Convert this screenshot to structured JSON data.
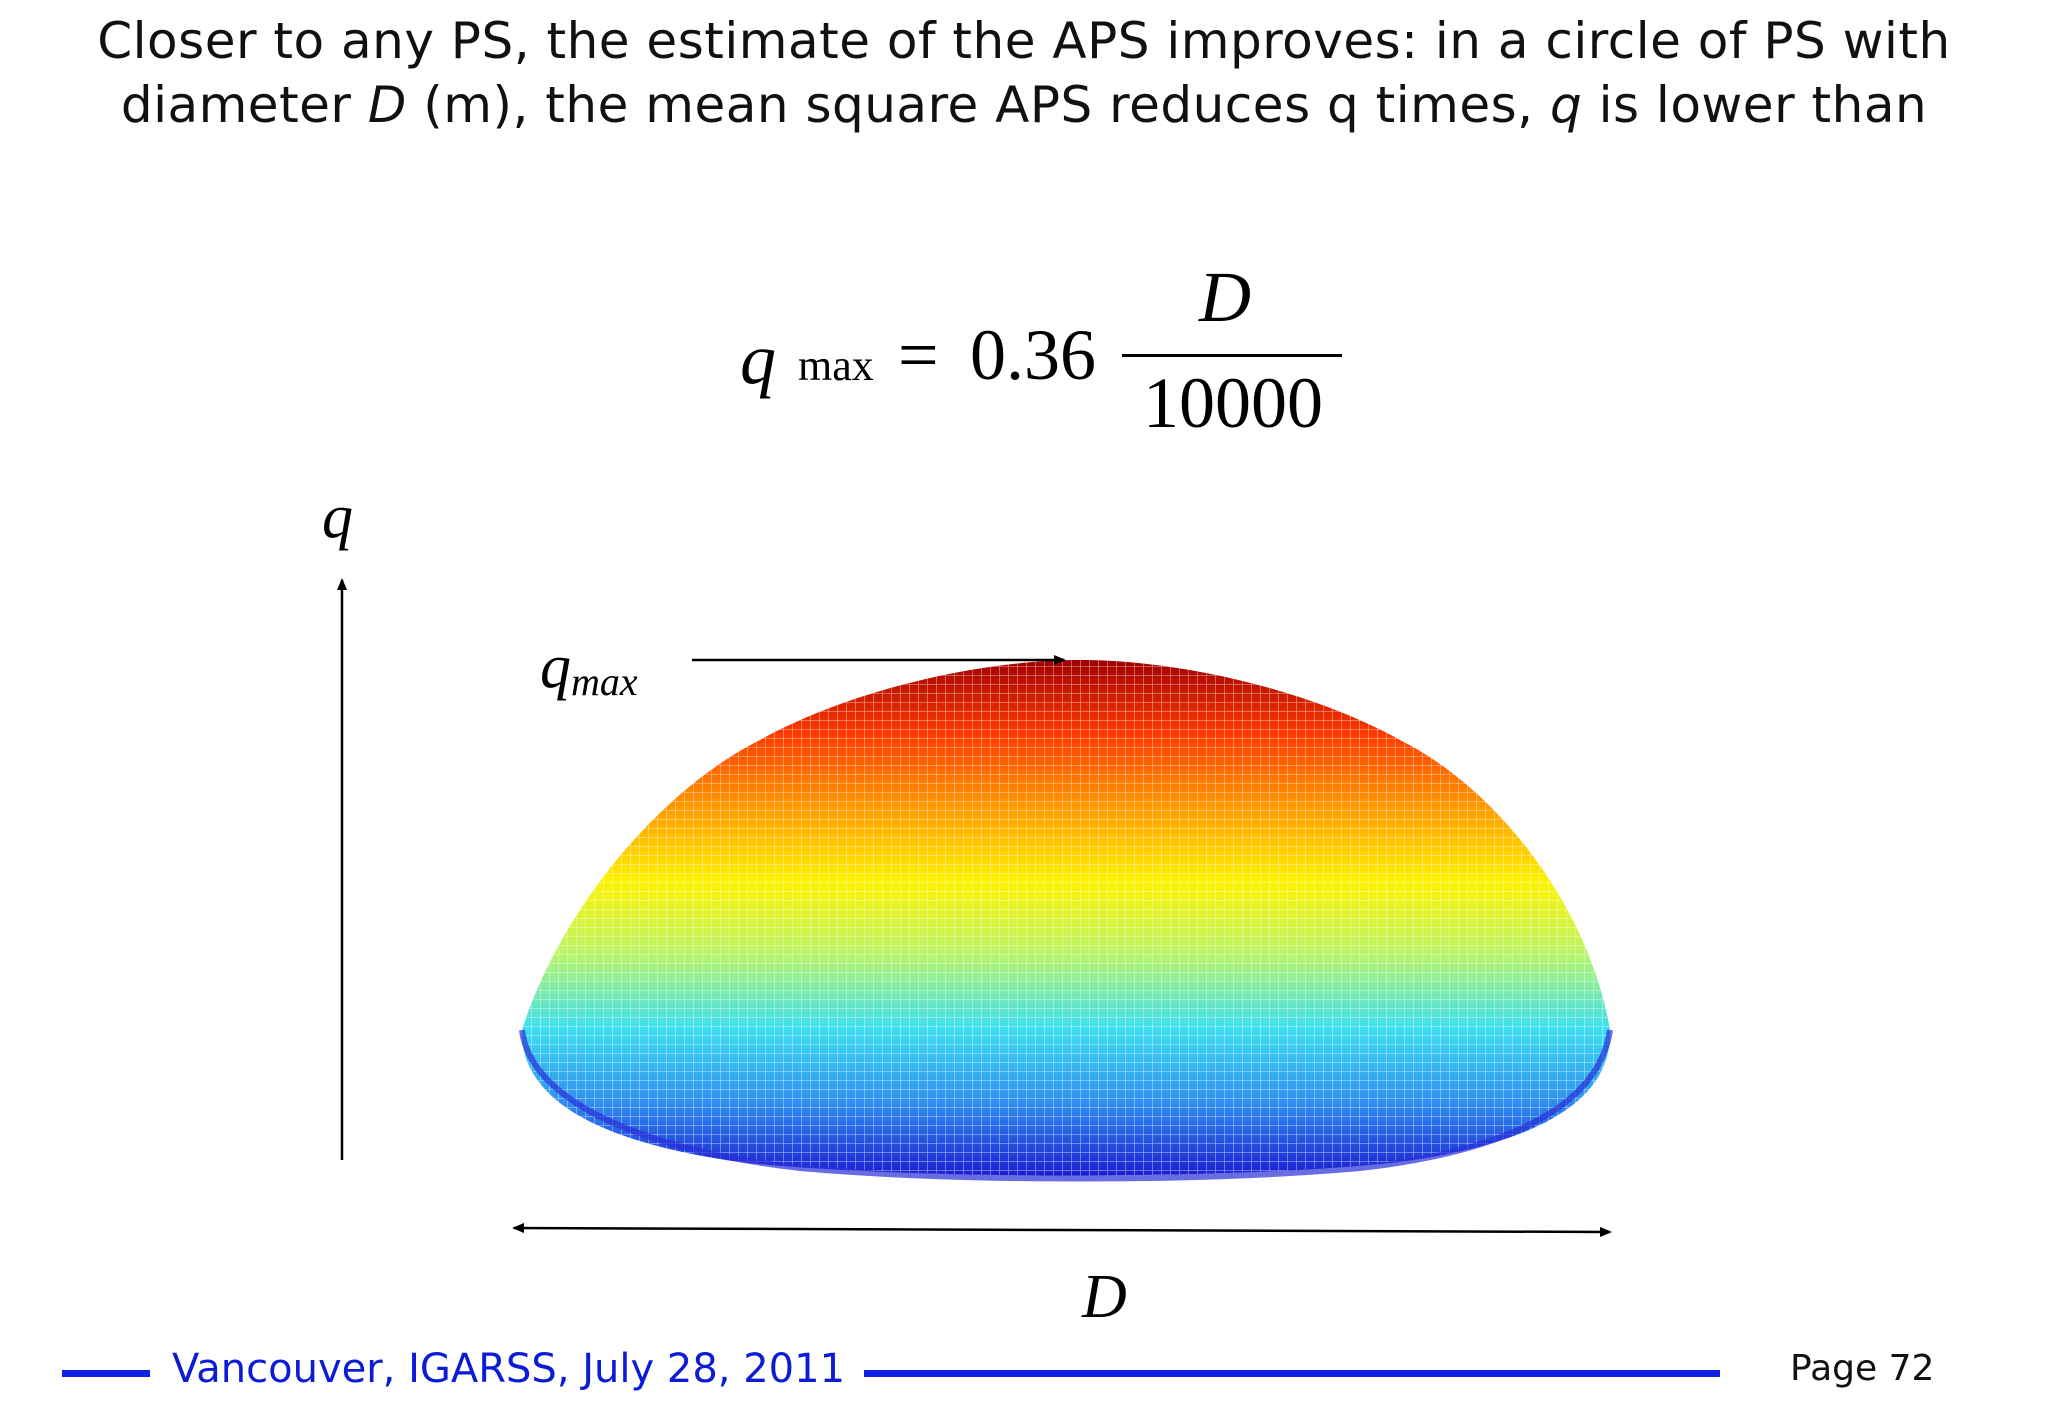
{
  "header": {
    "line1": "Closer to any PS, the estimate of the APS improves: in a circle of PS with",
    "line2_prefix": "diameter ",
    "line2_d": "D",
    "line2_mid": " (m), the mean square APS reduces q times, ",
    "line2_q": "q",
    "line2_suffix": " is lower than"
  },
  "formula": {
    "lhs_var": "q",
    "lhs_sub": "max",
    "equals": "=",
    "coefficient": "0.36",
    "numerator": "D",
    "denominator": "10000"
  },
  "diagram": {
    "y_axis_label": "q",
    "peak_label_main": "q",
    "peak_label_sub": "max",
    "x_axis_label": "D",
    "colormap": [
      "#1a1fd0",
      "#2f8ff0",
      "#3ee0f0",
      "#b9f56a",
      "#fff200",
      "#ff9a00",
      "#ff3a00",
      "#a00000"
    ]
  },
  "footer": {
    "location": "Vancouver, IGARSS, July 28, 2011",
    "page": "Page 72",
    "rule_color": "#1020e8"
  }
}
